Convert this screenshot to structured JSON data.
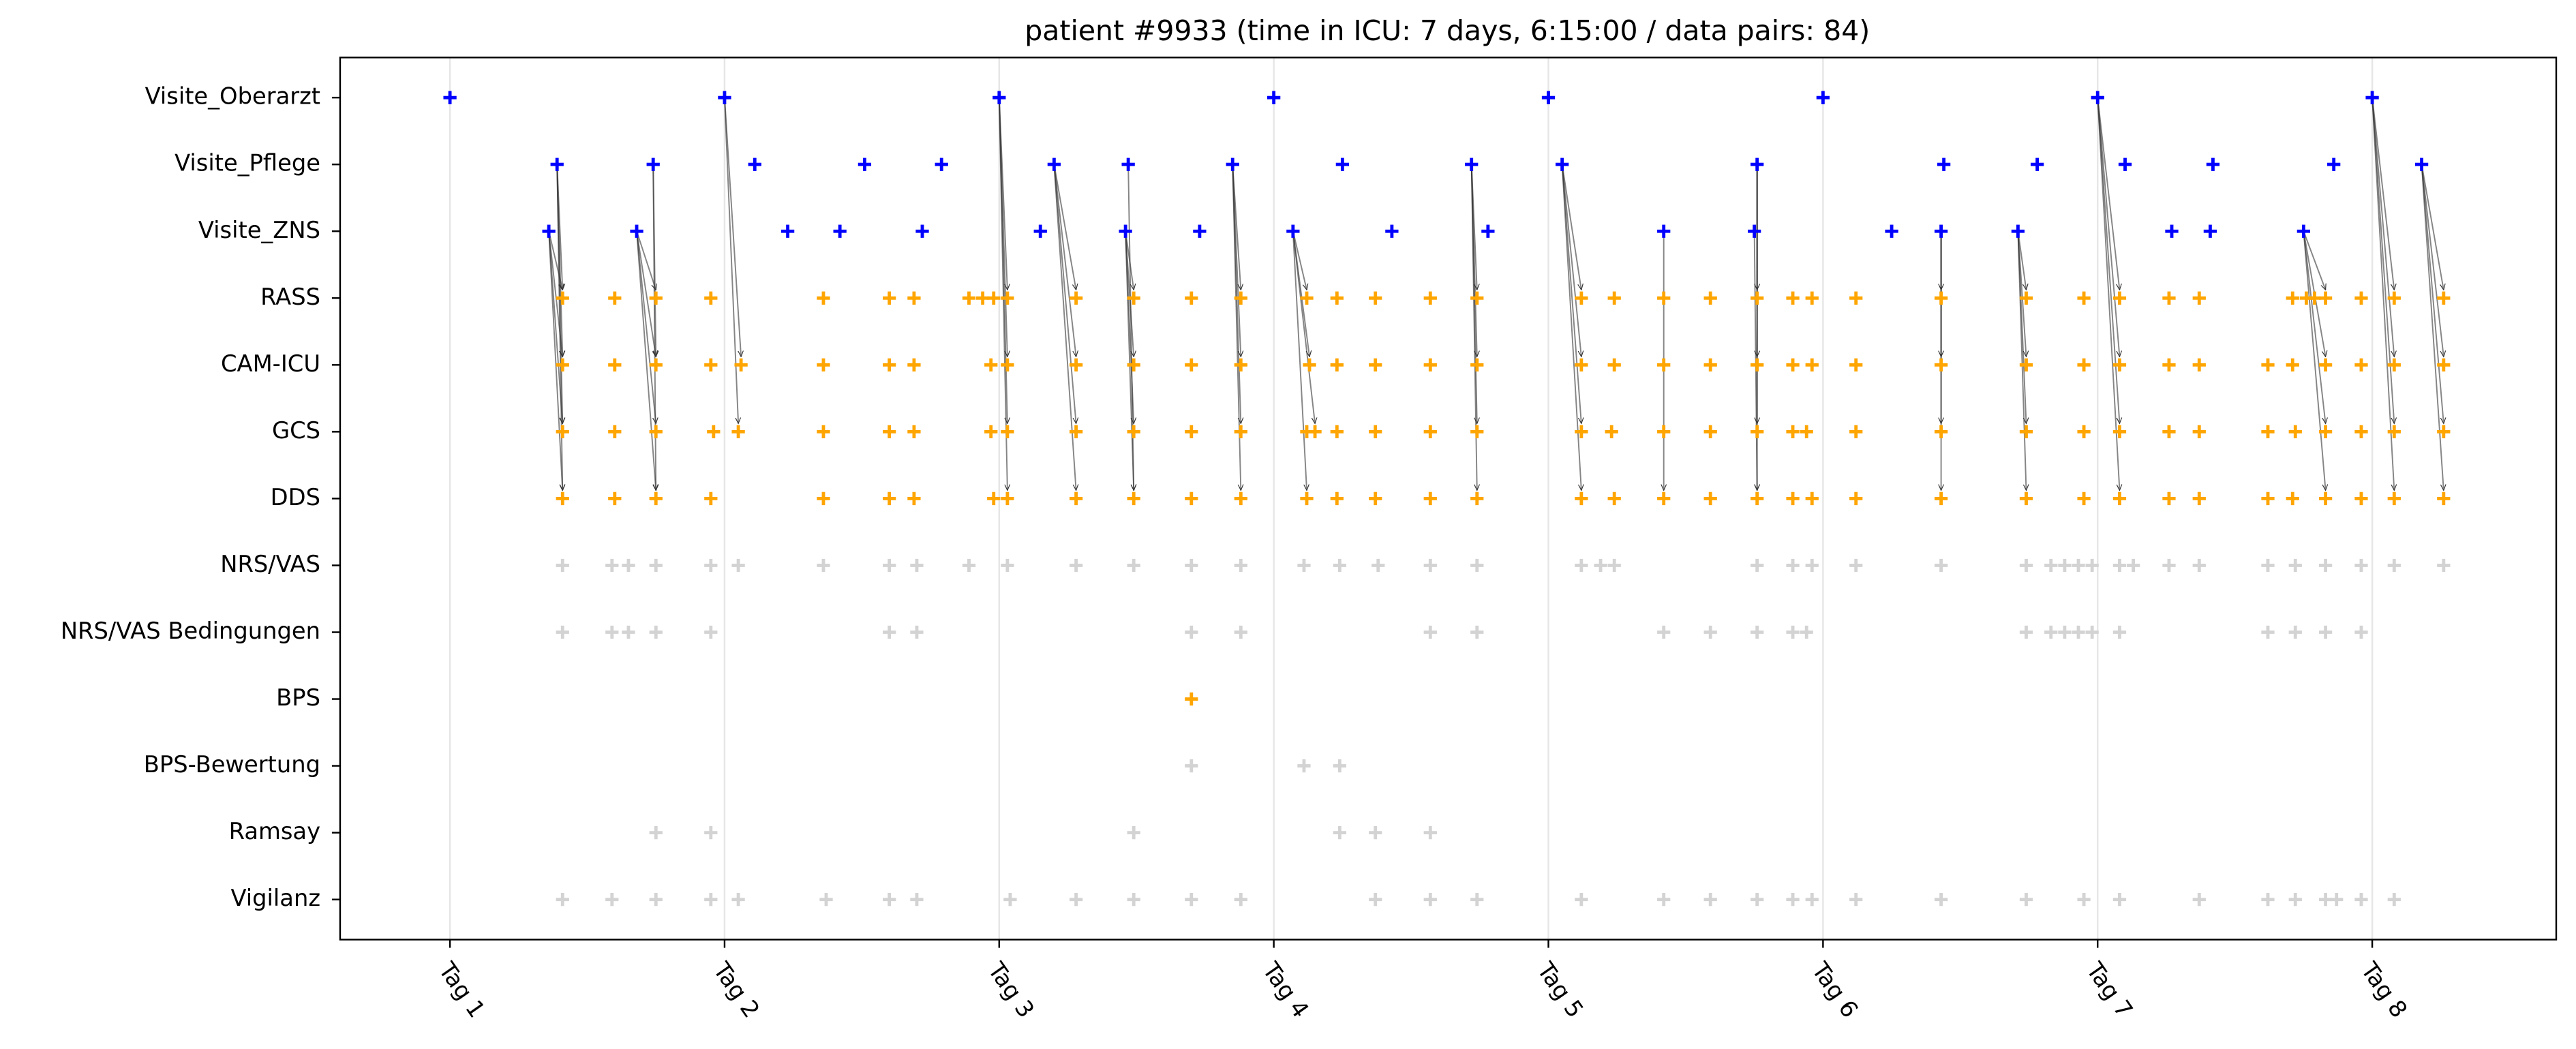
{
  "chart_data": {
    "type": "event",
    "title": "patient #9933 (time in ICU: 7 days, 6:15:00 / data pairs: 84)",
    "categories": [
      "Visite_Oberarzt",
      "Visite_Pflege",
      "Visite_ZNS",
      "RASS",
      "CAM-ICU",
      "GCS",
      "DDS",
      "NRS/VAS",
      "NRS/VAS Bedingungen",
      "BPS",
      "BPS-Bewertung",
      "Ramsay",
      "Vigilanz"
    ],
    "xlim": [
      0.6,
      8.67
    ],
    "ylim": [
      -0.6,
      12.6
    ],
    "xticks": [
      {
        "value": 1,
        "label": "Tag 1"
      },
      {
        "value": 2,
        "label": "Tag 2"
      },
      {
        "value": 3,
        "label": "Tag 3"
      },
      {
        "value": 4,
        "label": "Tag 4"
      },
      {
        "value": 5,
        "label": "Tag 5"
      },
      {
        "value": 6,
        "label": "Tag 6"
      },
      {
        "value": 7,
        "label": "Tag 7"
      },
      {
        "value": 8,
        "label": "Tag 8"
      }
    ],
    "grid": true,
    "series": [
      {
        "color": "#0000ff",
        "x": [
          1.0,
          2.0,
          3.0,
          4.0,
          5.0,
          6.0,
          7.0,
          8.0
        ]
      },
      {
        "color": "#0000ff",
        "x": [
          1.39,
          1.74,
          2.11,
          2.51,
          2.79,
          3.2,
          3.47,
          3.85,
          4.25,
          4.72,
          5.05,
          5.76,
          6.44,
          6.78,
          7.1,
          7.42,
          7.86,
          8.18
        ]
      },
      {
        "color": "#0000ff",
        "x": [
          1.36,
          1.68,
          2.23,
          2.42,
          2.72,
          3.15,
          3.46,
          3.73,
          4.07,
          4.43,
          4.78,
          5.42,
          5.75,
          6.25,
          6.43,
          6.71,
          7.27,
          7.41,
          7.75
        ]
      },
      {
        "color": "#ffa500",
        "x": [
          1.41,
          1.6,
          1.75,
          1.95,
          2.36,
          2.6,
          2.69,
          2.89,
          2.94,
          2.98,
          3.03,
          3.28,
          3.49,
          3.7,
          3.88,
          4.12,
          4.23,
          4.37,
          4.57,
          4.74,
          5.12,
          5.24,
          5.42,
          5.59,
          5.76,
          5.89,
          5.96,
          6.12,
          6.43,
          6.74,
          6.95,
          7.08,
          7.26,
          7.37,
          7.71,
          7.76,
          7.79,
          7.83,
          7.96,
          8.08,
          8.26
        ]
      },
      {
        "color": "#ffa500",
        "x": [
          1.41,
          1.6,
          1.75,
          1.95,
          2.06,
          2.36,
          2.6,
          2.69,
          2.97,
          3.03,
          3.28,
          3.49,
          3.7,
          3.88,
          4.13,
          4.23,
          4.37,
          4.57,
          4.74,
          5.12,
          5.24,
          5.42,
          5.59,
          5.76,
          5.89,
          5.96,
          6.12,
          6.43,
          6.74,
          6.95,
          7.08,
          7.26,
          7.37,
          7.62,
          7.71,
          7.83,
          7.96,
          8.08,
          8.26
        ]
      },
      {
        "color": "#ffa500",
        "x": [
          1.41,
          1.6,
          1.75,
          1.96,
          2.05,
          2.36,
          2.6,
          2.69,
          2.97,
          3.03,
          3.28,
          3.49,
          3.7,
          3.88,
          4.12,
          4.15,
          4.23,
          4.37,
          4.57,
          4.74,
          5.12,
          5.23,
          5.42,
          5.59,
          5.76,
          5.89,
          5.94,
          6.12,
          6.43,
          6.74,
          6.95,
          7.08,
          7.26,
          7.37,
          7.62,
          7.72,
          7.83,
          7.96,
          8.08,
          8.26
        ]
      },
      {
        "color": "#ffa500",
        "x": [
          1.41,
          1.6,
          1.75,
          1.95,
          2.36,
          2.6,
          2.69,
          2.98,
          3.03,
          3.28,
          3.49,
          3.7,
          3.88,
          4.12,
          4.23,
          4.37,
          4.57,
          4.74,
          5.12,
          5.24,
          5.42,
          5.59,
          5.76,
          5.89,
          5.96,
          6.12,
          6.43,
          6.74,
          6.95,
          7.08,
          7.26,
          7.37,
          7.62,
          7.71,
          7.83,
          7.96,
          8.08,
          8.26
        ]
      },
      {
        "color": "#d3d3d3",
        "x": [
          1.41,
          1.59,
          1.65,
          1.75,
          1.95,
          2.05,
          2.36,
          2.6,
          2.7,
          2.89,
          3.03,
          3.28,
          3.49,
          3.7,
          3.88,
          4.11,
          4.24,
          4.38,
          4.57,
          4.74,
          5.12,
          5.19,
          5.24,
          5.76,
          5.89,
          5.96,
          6.12,
          6.43,
          6.74,
          6.83,
          6.88,
          6.93,
          6.98,
          7.08,
          7.13,
          7.26,
          7.37,
          7.62,
          7.72,
          7.83,
          7.96,
          8.08,
          8.26
        ]
      },
      {
        "color": "#d3d3d3",
        "x": [
          1.41,
          1.59,
          1.65,
          1.75,
          1.95,
          2.6,
          2.7,
          3.7,
          3.88,
          4.57,
          4.74,
          5.42,
          5.59,
          5.76,
          5.89,
          5.94,
          6.74,
          6.83,
          6.88,
          6.93,
          6.98,
          7.08,
          7.62,
          7.72,
          7.83,
          7.96
        ]
      },
      {
        "color": "#ffa500",
        "x": [
          3.7
        ]
      },
      {
        "color": "#d3d3d3",
        "x": [
          3.7,
          4.11,
          4.24
        ]
      },
      {
        "color": "#d3d3d3",
        "x": [
          1.75,
          1.95,
          3.49,
          4.24,
          4.37,
          4.57
        ]
      },
      {
        "color": "#d3d3d3",
        "x": [
          1.41,
          1.59,
          1.75,
          1.95,
          2.05,
          2.37,
          2.6,
          2.7,
          3.04,
          3.28,
          3.49,
          3.7,
          3.88,
          4.37,
          4.57,
          4.74,
          5.12,
          5.42,
          5.59,
          5.76,
          5.89,
          5.96,
          6.12,
          6.43,
          6.74,
          6.95,
          7.08,
          7.37,
          7.62,
          7.72,
          7.83,
          7.87,
          7.96,
          8.08
        ]
      }
    ],
    "links": [
      {
        "source": [
          2,
          1.36
        ],
        "targets": [
          [
            3,
            1.41
          ],
          [
            4,
            1.41
          ],
          [
            5,
            1.41
          ],
          [
            6,
            1.41
          ]
        ]
      },
      {
        "source": [
          1,
          1.39
        ],
        "targets": [
          [
            3,
            1.41
          ],
          [
            4,
            1.41
          ],
          [
            5,
            1.41
          ],
          [
            6,
            1.41
          ]
        ]
      },
      {
        "source": [
          2,
          1.68
        ],
        "targets": [
          [
            3,
            1.75
          ],
          [
            4,
            1.75
          ],
          [
            5,
            1.75
          ],
          [
            6,
            1.75
          ]
        ]
      },
      {
        "source": [
          1,
          1.74
        ],
        "targets": [
          [
            4,
            1.75
          ],
          [
            6,
            1.75
          ]
        ]
      },
      {
        "source": [
          0,
          2.0
        ],
        "targets": [
          [
            4,
            2.06
          ],
          [
            5,
            2.05
          ]
        ]
      },
      {
        "source": [
          0,
          3.0
        ],
        "targets": [
          [
            3,
            3.03
          ],
          [
            4,
            3.03
          ],
          [
            5,
            3.03
          ],
          [
            6,
            3.03
          ]
        ]
      },
      {
        "source": [
          1,
          3.2
        ],
        "targets": [
          [
            3,
            3.28
          ],
          [
            4,
            3.28
          ],
          [
            5,
            3.28
          ],
          [
            6,
            3.28
          ]
        ]
      },
      {
        "source": [
          2,
          3.46
        ],
        "targets": [
          [
            3,
            3.49
          ],
          [
            4,
            3.49
          ],
          [
            5,
            3.49
          ],
          [
            6,
            3.49
          ]
        ]
      },
      {
        "source": [
          1,
          3.47
        ],
        "targets": [
          [
            6,
            3.49
          ]
        ]
      },
      {
        "source": [
          1,
          3.85
        ],
        "targets": [
          [
            3,
            3.88
          ],
          [
            4,
            3.88
          ],
          [
            5,
            3.88
          ],
          [
            6,
            3.88
          ]
        ]
      },
      {
        "source": [
          2,
          4.07
        ],
        "targets": [
          [
            3,
            4.12
          ],
          [
            4,
            4.13
          ],
          [
            5,
            4.15
          ],
          [
            6,
            4.12
          ]
        ]
      },
      {
        "source": [
          1,
          4.72
        ],
        "targets": [
          [
            3,
            4.74
          ],
          [
            4,
            4.74
          ],
          [
            5,
            4.74
          ],
          [
            6,
            4.74
          ]
        ]
      },
      {
        "source": [
          1,
          5.05
        ],
        "targets": [
          [
            3,
            5.12
          ],
          [
            4,
            5.12
          ],
          [
            5,
            5.12
          ],
          [
            6,
            5.12
          ]
        ]
      },
      {
        "source": [
          2,
          5.42
        ],
        "targets": [
          [
            6,
            5.42
          ]
        ]
      },
      {
        "source": [
          1,
          5.76
        ],
        "targets": [
          [
            3,
            5.76
          ],
          [
            4,
            5.76
          ],
          [
            5,
            5.76
          ],
          [
            6,
            5.76
          ]
        ]
      },
      {
        "source": [
          2,
          5.75
        ],
        "targets": [
          [
            6,
            5.76
          ]
        ]
      },
      {
        "source": [
          2,
          6.43
        ],
        "targets": [
          [
            3,
            6.43
          ],
          [
            4,
            6.43
          ],
          [
            5,
            6.43
          ],
          [
            6,
            6.43
          ]
        ]
      },
      {
        "source": [
          2,
          6.71
        ],
        "targets": [
          [
            3,
            6.74
          ],
          [
            4,
            6.74
          ],
          [
            5,
            6.74
          ],
          [
            6,
            6.74
          ]
        ]
      },
      {
        "source": [
          0,
          7.0
        ],
        "targets": [
          [
            3,
            7.08
          ],
          [
            4,
            7.08
          ],
          [
            5,
            7.08
          ],
          [
            6,
            7.08
          ]
        ]
      },
      {
        "source": [
          2,
          7.75
        ],
        "targets": [
          [
            3,
            7.83
          ],
          [
            4,
            7.83
          ],
          [
            5,
            7.83
          ],
          [
            6,
            7.83
          ]
        ]
      },
      {
        "source": [
          0,
          8.0
        ],
        "targets": [
          [
            3,
            8.08
          ],
          [
            4,
            8.08
          ],
          [
            5,
            8.08
          ],
          [
            6,
            8.08
          ]
        ]
      },
      {
        "source": [
          1,
          8.18
        ],
        "targets": [
          [
            3,
            8.26
          ],
          [
            4,
            8.26
          ],
          [
            5,
            8.26
          ],
          [
            6,
            8.26
          ]
        ]
      }
    ]
  }
}
